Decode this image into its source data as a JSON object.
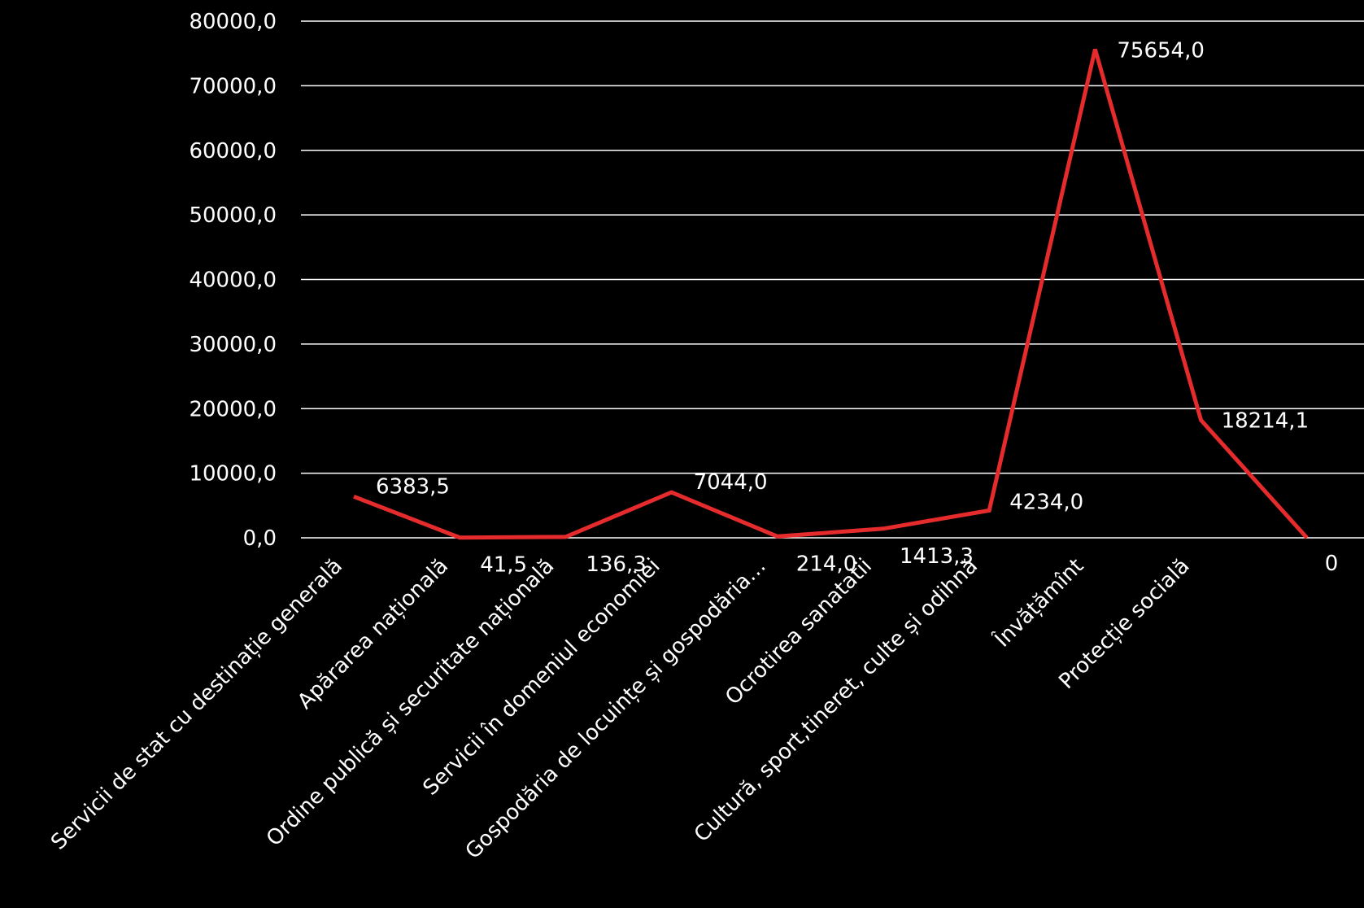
{
  "chart_data": {
    "type": "line",
    "categories": [
      "Servicii de stat cu destinație generală",
      "Apărarea națională",
      "Ordine publică și securitate națională",
      "Servicii în domeniul economiei",
      "Gospodăria de locuințe și gospodăria…",
      "Ocrotirea sanatatii",
      "Cultură, sport,tineret, culte și odihnă",
      "Învățămînt",
      "Protecție socială",
      ""
    ],
    "series": [
      {
        "values": [
          6383.5,
          41.5,
          136.3,
          7044.0,
          214.0,
          1413.3,
          4234.0,
          75654.0,
          18214.1,
          0
        ],
        "labels": [
          "6383,5",
          "41,5",
          "136,3",
          "7044,0",
          "214,0",
          "1413,3",
          "4234,0",
          "75654,0",
          "18214,1",
          "0"
        ],
        "color": "#e52b2b"
      }
    ],
    "yticks": [
      0,
      10000,
      20000,
      30000,
      40000,
      50000,
      60000,
      70000,
      80000
    ],
    "ytick_labels": [
      "0,0",
      "10000,0",
      "20000,0",
      "30000,0",
      "40000,0",
      "50000,0",
      "60000,0",
      "70000,0",
      "80000,0"
    ],
    "ylim": [
      0,
      80000
    ],
    "title": "",
    "xlabel": "",
    "ylabel": "",
    "grid": true,
    "legend": "none",
    "colors": {
      "background": "#000000",
      "text": "#ffffff",
      "grid": "#ffffff",
      "line": "#e52b2b"
    }
  }
}
